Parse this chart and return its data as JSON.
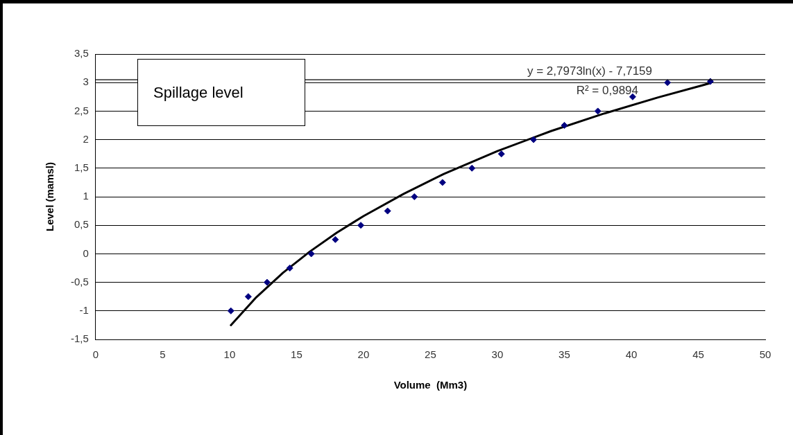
{
  "chart_data": {
    "type": "scatter",
    "xlabel": "Volume  (Mm3)",
    "ylabel": "Level (mamsl)",
    "xlim": [
      0,
      50
    ],
    "xticks": [
      0,
      5,
      10,
      15,
      20,
      25,
      30,
      35,
      40,
      45,
      50
    ],
    "ylim": [
      -1.5,
      3.5
    ],
    "yticks": [
      {
        "value": -1.5,
        "label": "-1,5"
      },
      {
        "value": -1,
        "label": "-1"
      },
      {
        "value": -0.5,
        "label": "-0,5"
      },
      0,
      {
        "value": 0.5,
        "label": "0,5"
      },
      1,
      {
        "value": 1.5,
        "label": "1,5"
      },
      2,
      {
        "value": 2.5,
        "label": "2,5"
      },
      3,
      {
        "value": 3.5,
        "label": "3,5"
      }
    ],
    "grid": "y",
    "legend": false,
    "marker": "diamond",
    "series": [
      {
        "type": "scatter",
        "color": "#000080",
        "x": [
          10.1,
          11.4,
          12.8,
          14.5,
          16.1,
          17.9,
          19.8,
          21.8,
          23.8,
          25.9,
          28.1,
          30.3,
          32.7,
          35.0,
          37.5,
          40.1,
          42.7,
          45.9
        ],
        "values": [
          -1,
          -0.75,
          -0.5,
          -0.25,
          0,
          0.25,
          0.5,
          0.75,
          1,
          1.25,
          1.5,
          1.75,
          2,
          2.25,
          2.5,
          2.75,
          3,
          3.02
        ]
      },
      {
        "type": "line",
        "marker": "none",
        "color": "#000000",
        "x": [
          10.1,
          12,
          14,
          16,
          18,
          20,
          23,
          26,
          30,
          34,
          38,
          42,
          45.9
        ],
        "values": [
          -1.25,
          -0.76,
          -0.33,
          0.04,
          0.37,
          0.66,
          1.05,
          1.4,
          1.8,
          2.15,
          2.46,
          2.74,
          2.99
        ]
      }
    ],
    "ref_lines": [
      {
        "axis": "y",
        "value": 3.05,
        "label": "Spillage level",
        "color": "#000000"
      }
    ],
    "annotations": [
      "y = 2,7973ln(x) - 7,7159",
      "R² = 0,9894"
    ]
  }
}
